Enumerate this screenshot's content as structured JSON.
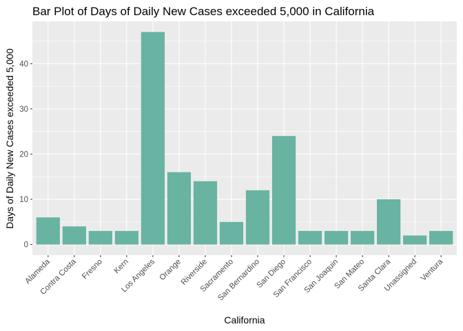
{
  "chart_data": {
    "type": "bar",
    "title": "Bar Plot of Days of Daily New Cases exceeded 5,000 in California",
    "xlabel": "California",
    "ylabel": "Days of Daily New Cases exceeded 5,000",
    "categories": [
      "Alameda",
      "Contra Costa",
      "Fresno",
      "Kern",
      "Los Angeles",
      "Orange",
      "Riverside",
      "Sacramento",
      "San Bernardino",
      "San Diego",
      "San Francisco",
      "San Joaquin",
      "San Mateo",
      "Santa Clara",
      "Unassigned",
      "Ventura"
    ],
    "values": [
      6,
      4,
      3,
      3,
      47,
      16,
      14,
      5,
      12,
      24,
      3,
      3,
      3,
      10,
      2,
      3
    ],
    "yticks": [
      0,
      10,
      20,
      30,
      40
    ],
    "ylim": [
      -2.35,
      49.35
    ],
    "grid": true,
    "legend": "none",
    "colors": {
      "bar": "#69b3a2",
      "panel": "#ebebeb",
      "grid": "#ffffff"
    }
  }
}
